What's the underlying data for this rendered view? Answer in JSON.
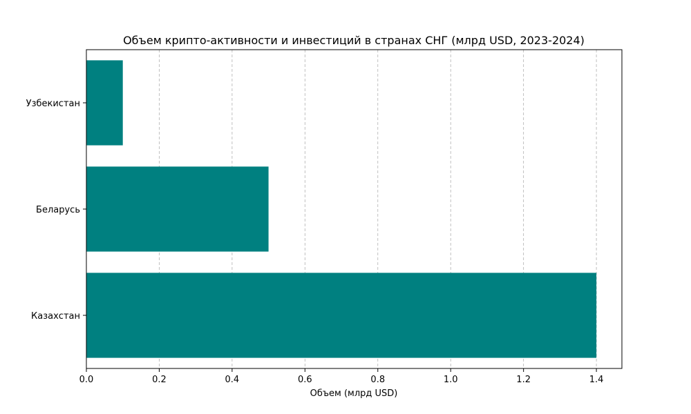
{
  "chart_data": {
    "type": "bar",
    "orientation": "horizontal",
    "title": "Объем крипто-активности и инвестиций в странах СНГ (млрд USD, 2023-2024)",
    "xlabel": "Объем (млрд USD)",
    "ylabel": "",
    "categories": [
      "Казахстан",
      "Беларусь",
      "Узбекистан"
    ],
    "values": [
      1.4,
      0.5,
      0.1
    ],
    "xlim": [
      0,
      1.47
    ],
    "xticks": [
      "0.0",
      "0.2",
      "0.4",
      "0.6",
      "0.8",
      "1.0",
      "1.2",
      "1.4"
    ],
    "grid": "x",
    "bar_color": "#008080"
  }
}
